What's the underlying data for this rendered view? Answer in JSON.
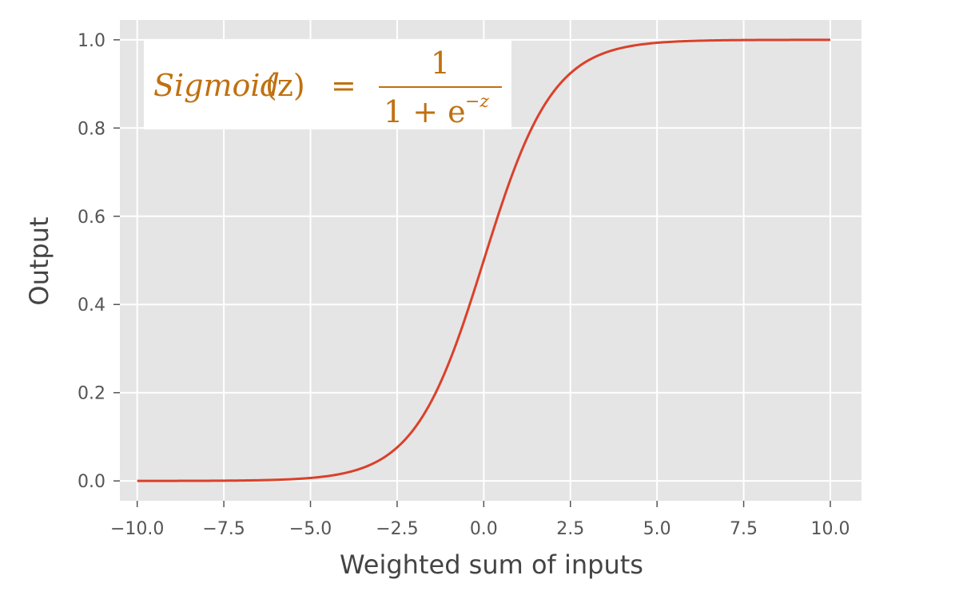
{
  "chart_data": {
    "type": "line",
    "title": "",
    "xlabel": "Weighted sum of inputs",
    "ylabel": "Output",
    "xlim": [
      -10.5,
      10.9
    ],
    "ylim": [
      -0.045,
      1.045
    ],
    "x_ticks": [
      -10.0,
      -7.5,
      -5.0,
      -2.5,
      0.0,
      2.5,
      5.0,
      7.5,
      10.0
    ],
    "x_tick_labels": [
      "−10.0",
      "−7.5",
      "−5.0",
      "−2.5",
      "0.0",
      "2.5",
      "5.0",
      "7.5",
      "10.0"
    ],
    "y_ticks": [
      0.0,
      0.2,
      0.4,
      0.6,
      0.8,
      1.0
    ],
    "y_tick_labels": [
      "0.0",
      "0.2",
      "0.4",
      "0.6",
      "0.8",
      "1.0"
    ],
    "grid": true,
    "series": [
      {
        "function": "sigmoid",
        "x": [
          -10,
          -9,
          -8,
          -7,
          -6,
          -5,
          -4,
          -3,
          -2.5,
          -2,
          -1.5,
          -1,
          -0.5,
          0,
          0.5,
          1,
          1.5,
          2,
          2.5,
          3,
          4,
          5,
          6,
          7,
          8,
          9,
          10
        ],
        "y": [
          0.0,
          0.0001,
          0.0003,
          0.0009,
          0.0025,
          0.0067,
          0.018,
          0.0474,
          0.0759,
          0.1192,
          0.1824,
          0.2689,
          0.3775,
          0.5,
          0.6225,
          0.7311,
          0.8176,
          0.8808,
          0.9241,
          0.9526,
          0.982,
          0.9933,
          0.9975,
          0.9991,
          0.9997,
          0.9999,
          1.0
        ],
        "color": "#d9412b"
      }
    ],
    "annotation": {
      "lhs_name": "Sigmoid",
      "lhs_arg": "(z)",
      "equals": "=",
      "numerator": "1",
      "denominator_base": "1 + e",
      "denominator_exponent": "−z",
      "color": "#c07010"
    },
    "colors": {
      "plot_background": "#e5e5e5",
      "grid": "#ffffff",
      "annotation_box": "#ffffff"
    }
  }
}
